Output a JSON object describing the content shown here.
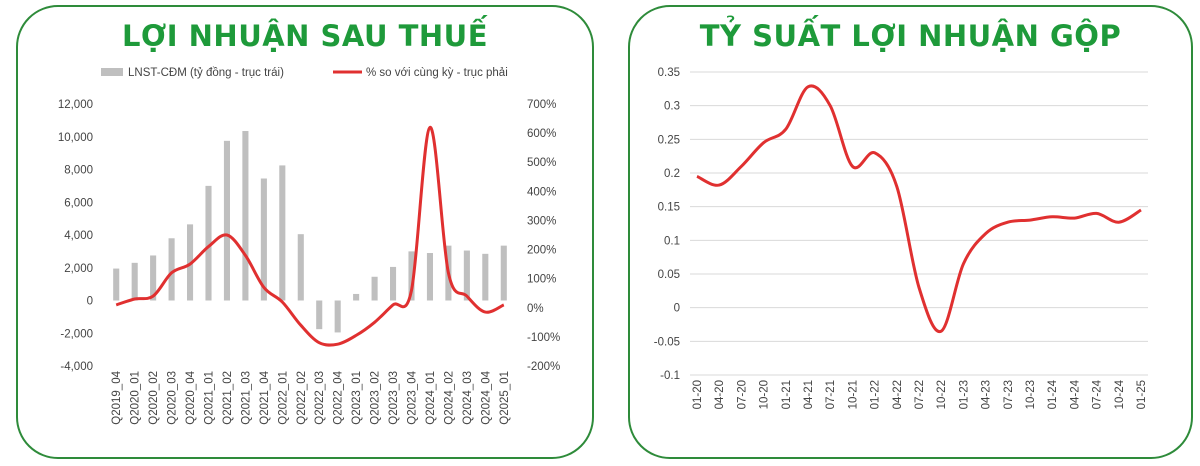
{
  "chart_data": [
    {
      "type": "bar+line",
      "title": "LỢI NHUẬN SAU THUẾ",
      "categories": [
        "Q2019_04",
        "Q2020_01",
        "Q2020_02",
        "Q2020_03",
        "Q2020_04",
        "Q2021_01",
        "Q2021_02",
        "Q2021_03",
        "Q2021_04",
        "Q2022_01",
        "Q2022_02",
        "Q2022_03",
        "Q2022_04",
        "Q2023_01",
        "Q2023_02",
        "Q2023_03",
        "Q2023_04",
        "Q2024_01",
        "Q2024_02",
        "Q2024_03",
        "Q2024_04",
        "Q2025_01"
      ],
      "x_tick_labels": [
        "Q2019_04",
        "Q2020_02",
        "Q2020_04",
        "Q2021_02",
        "Q2021_04",
        "Q2022_02",
        "Q2022_04",
        "Q2023_02",
        "Q2023_04",
        "Q2024_02",
        "Q2024_04",
        "Q2020_01",
        "Q2020_03",
        "Q2021_01",
        "Q2021_03",
        "Q2022_01",
        "Q2022_03",
        "Q2023_01",
        "Q2023_03",
        "Q2024_01",
        "Q2024_03",
        "Q2025_01"
      ],
      "series": [
        {
          "name": "LNST-CĐM (tỷ đồng - trục trái)",
          "kind": "bar",
          "axis": "left",
          "color": "#bfbfbf",
          "values": [
            1950,
            2300,
            2750,
            3800,
            4650,
            7000,
            9750,
            10350,
            7450,
            8250,
            4050,
            -1750,
            -1950,
            400,
            1450,
            2050,
            3000,
            2900,
            3350,
            3050,
            2850,
            3350
          ]
        },
        {
          "name": "% so với cùng kỳ - trục phải",
          "kind": "line",
          "axis": "right",
          "color": "#e03030",
          "values": [
            10,
            30,
            40,
            120,
            150,
            210,
            250,
            180,
            70,
            20,
            -60,
            -120,
            -125,
            -95,
            -50,
            10,
            60,
            620,
            120,
            40,
            -15,
            10
          ]
        }
      ],
      "y_left": {
        "min": -4000,
        "max": 12000,
        "step": 2000,
        "ticks": [
          "-4,000",
          "-2,000",
          "0",
          "2,000",
          "4,000",
          "6,000",
          "8,000",
          "10,000",
          "12,000"
        ]
      },
      "y_right": {
        "min": -200,
        "max": 700,
        "step": 100,
        "ticks": [
          "-200%",
          "-100%",
          "0%",
          "100%",
          "200%",
          "300%",
          "400%",
          "500%",
          "600%",
          "700%"
        ]
      },
      "legend": "top",
      "grid": false
    },
    {
      "type": "line",
      "title": "TỶ SUẤT LỢI NHUẬN GỘP",
      "categories": [
        "01-20",
        "04-20",
        "07-20",
        "10-20",
        "01-21",
        "04-21",
        "07-21",
        "10-21",
        "01-22",
        "04-22",
        "07-22",
        "10-22",
        "01-23",
        "04-23",
        "07-23",
        "10-23",
        "01-24",
        "04-24",
        "07-24",
        "10-24",
        "01-25"
      ],
      "series": [
        {
          "name": "",
          "color": "#e03030",
          "values": [
            0.195,
            0.182,
            0.21,
            0.245,
            0.265,
            0.328,
            0.3,
            0.21,
            0.23,
            0.18,
            0.03,
            -0.035,
            0.065,
            0.11,
            0.127,
            0.13,
            0.135,
            0.133,
            0.14,
            0.127,
            0.145
          ]
        }
      ],
      "y": {
        "min": -0.1,
        "max": 0.35,
        "step": 0.05,
        "ticks": [
          "-0.1",
          "-0.05",
          "0",
          "0.05",
          "0.1",
          "0.15",
          "0.2",
          "0.25",
          "0.3",
          "0.35"
        ]
      },
      "grid": true
    }
  ]
}
